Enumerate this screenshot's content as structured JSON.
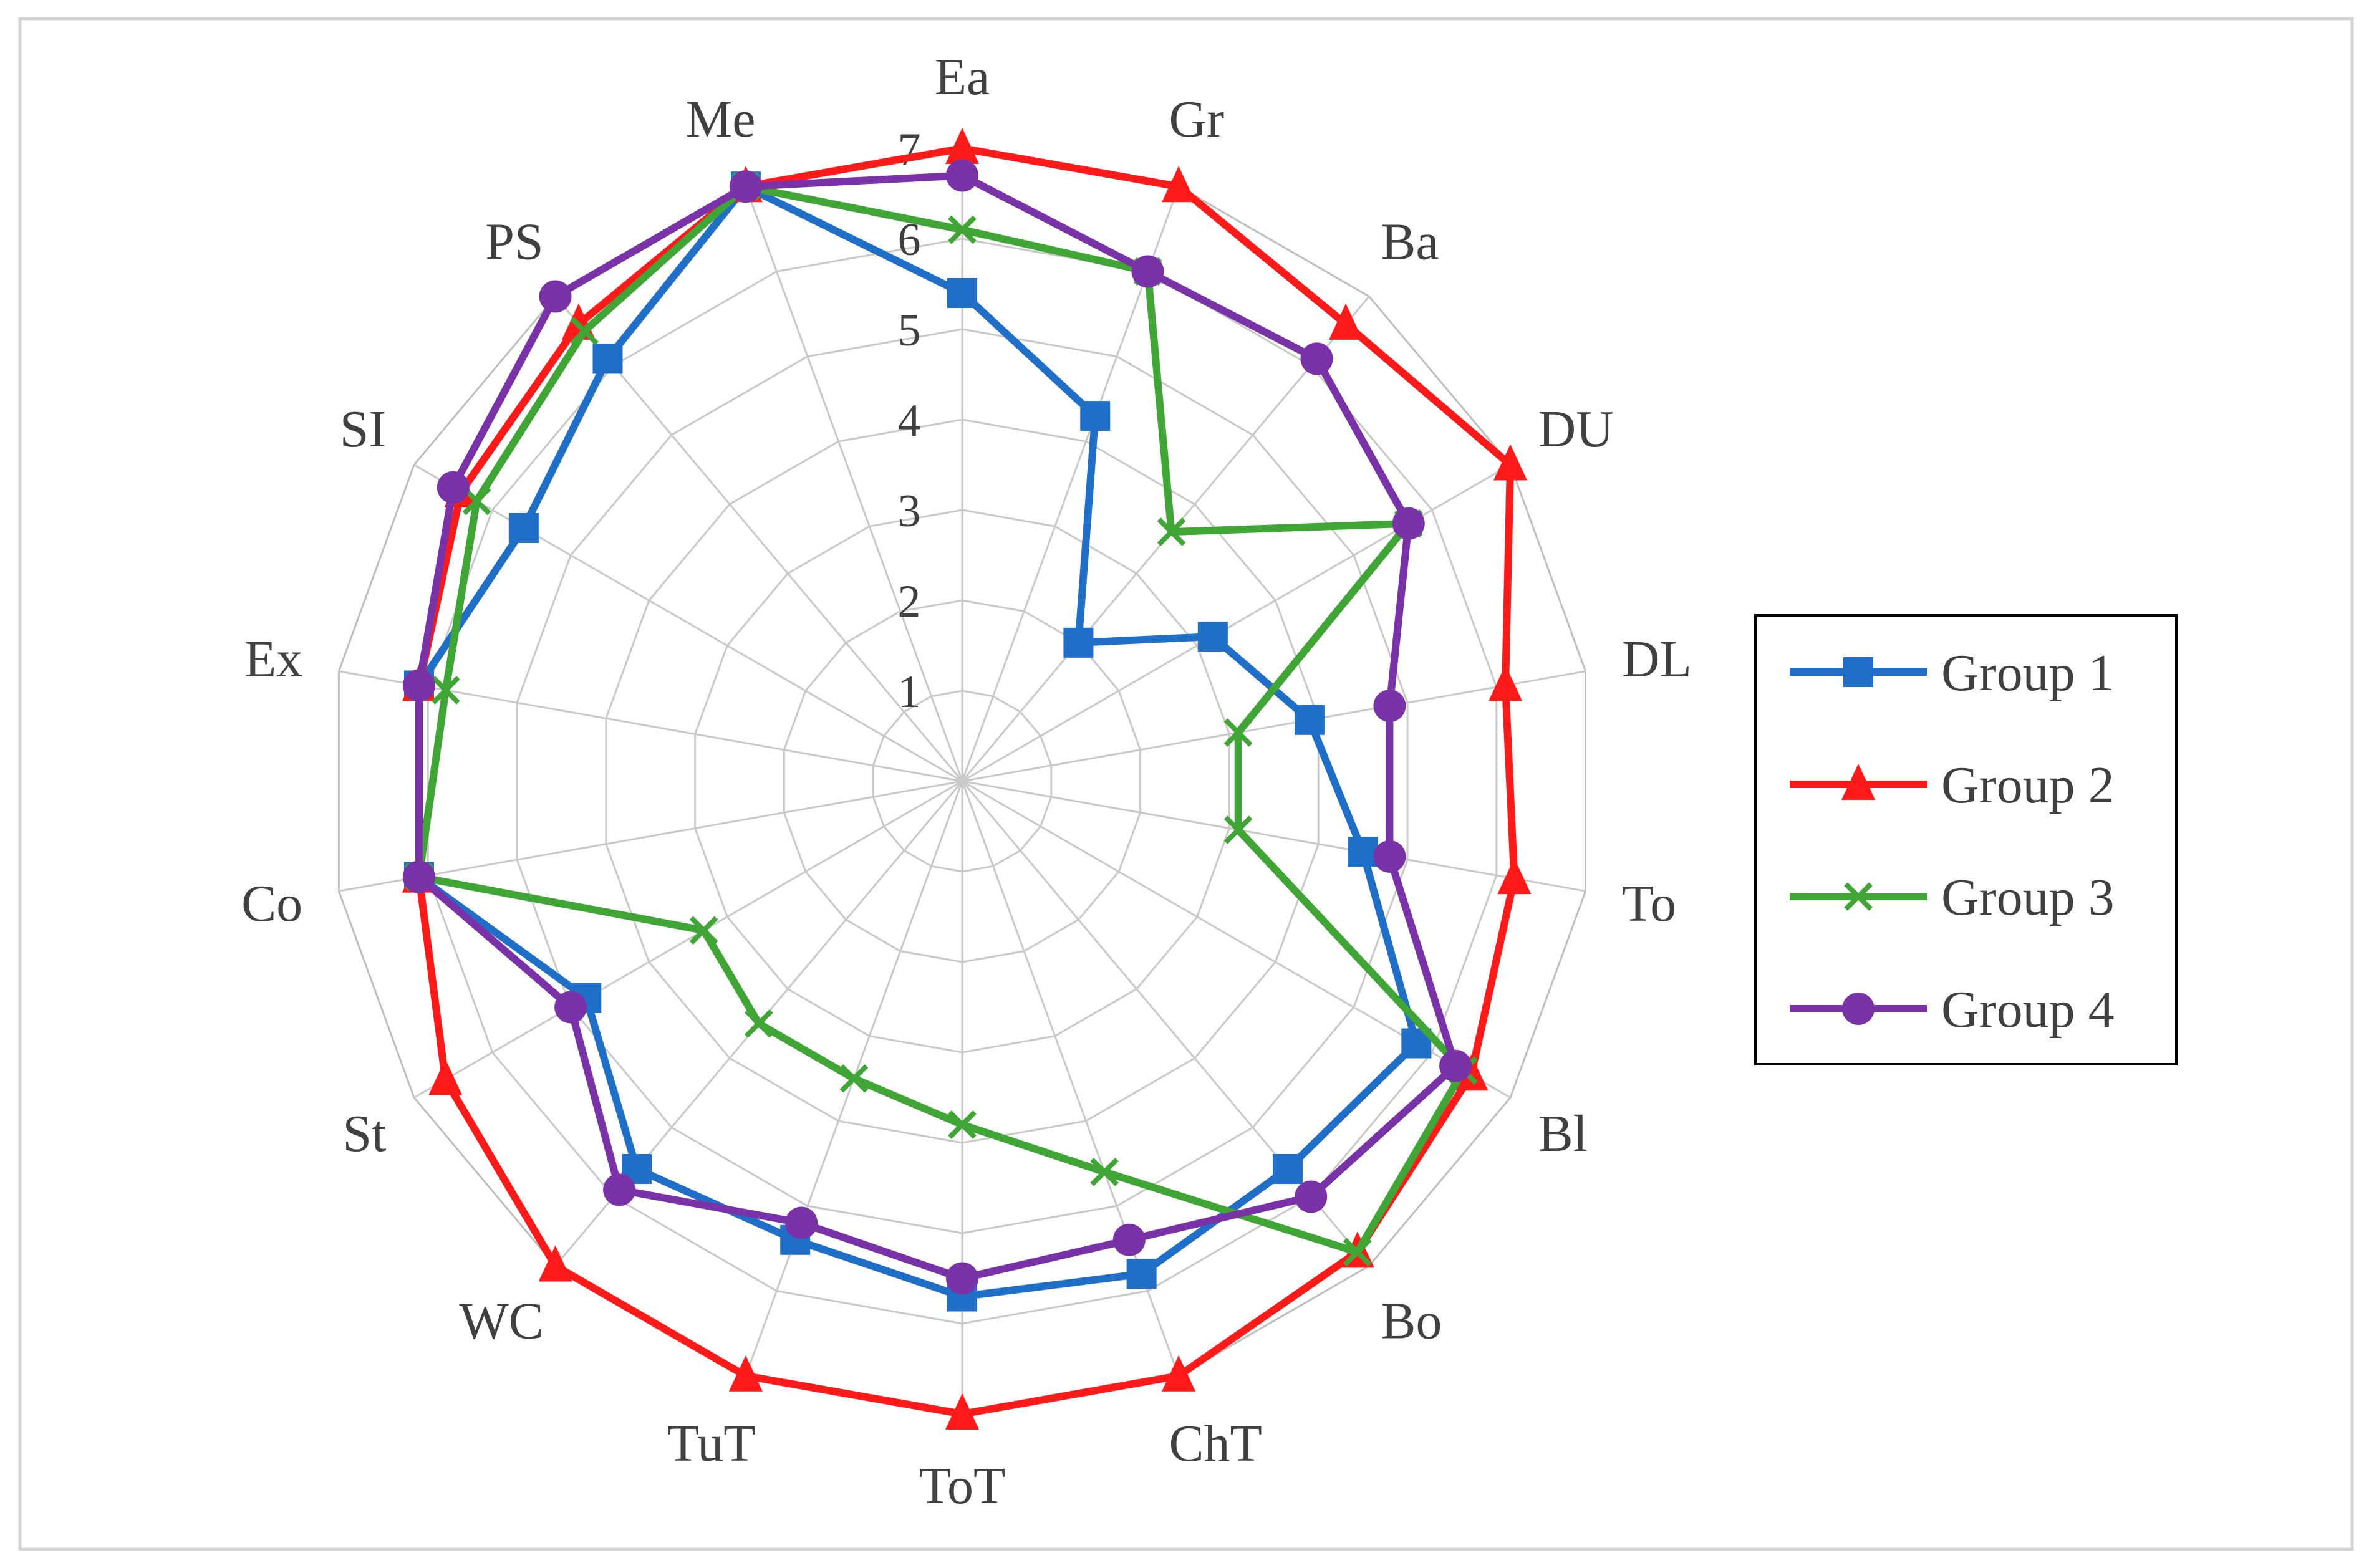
{
  "chart_data": {
    "type": "radar",
    "title": "",
    "categories": [
      "Ea",
      "Gr",
      "Ba",
      "DU",
      "DL",
      "To",
      "Bl",
      "Bo",
      "ChT",
      "ToT",
      "TuT",
      "WC",
      "St",
      "Co",
      "Ex",
      "SI",
      "PS",
      "Me"
    ],
    "r_ticks": [
      1,
      2,
      3,
      4,
      5,
      6,
      7
    ],
    "r_range": [
      0,
      7
    ],
    "grid": true,
    "legend_position": "right",
    "series": [
      {
        "name": "Group 1",
        "color": "#1F6FC8",
        "marker": "square",
        "values": [
          5.4,
          4.3,
          2.0,
          3.2,
          3.9,
          4.5,
          5.8,
          5.6,
          5.8,
          5.7,
          5.4,
          5.6,
          4.8,
          6.1,
          6.1,
          5.6,
          6.1,
          7.0
        ]
      },
      {
        "name": "Group 2",
        "color": "#FF1A1A",
        "marker": "triangle",
        "values": [
          7.0,
          7.0,
          6.6,
          7.0,
          6.1,
          6.2,
          6.5,
          6.8,
          7.0,
          7.0,
          7.0,
          7.0,
          6.6,
          6.1,
          6.1,
          6.4,
          6.6,
          7.0
        ]
      },
      {
        "name": "Group 3",
        "color": "#3FA535",
        "marker": "x",
        "values": [
          6.1,
          6.0,
          3.6,
          5.7,
          3.1,
          3.1,
          6.4,
          6.8,
          4.6,
          3.8,
          3.5,
          3.5,
          3.3,
          6.1,
          5.8,
          6.2,
          6.5,
          7.0
        ]
      },
      {
        "name": "Group 4",
        "color": "#7A32A8",
        "marker": "circle",
        "values": [
          6.7,
          6.0,
          6.1,
          5.7,
          4.8,
          4.8,
          6.3,
          6.0,
          5.4,
          5.5,
          5.2,
          5.9,
          5.0,
          6.1,
          6.1,
          6.5,
          7.0,
          7.0
        ]
      }
    ]
  }
}
